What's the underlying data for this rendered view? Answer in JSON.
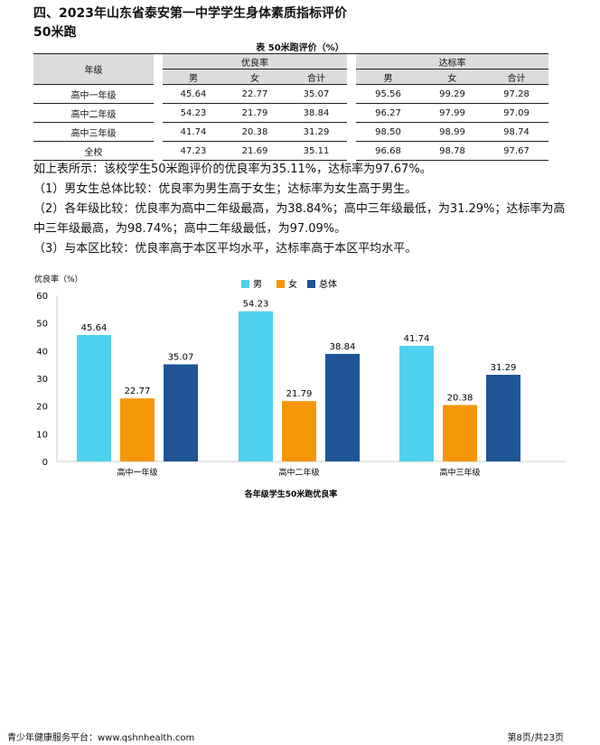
{
  "heading": "四、2023年山东省泰安第一中学学生身体素质指标评价",
  "subheading": "50米跑",
  "table": {
    "caption": "表 50米跑评价（%）",
    "col_grade": "年级",
    "group1": "优良率",
    "group2": "达标率",
    "sub": [
      "男",
      "女",
      "合计"
    ],
    "rows": [
      {
        "grade": "高中一年级",
        "v": [
          "45.64",
          "22.77",
          "35.07",
          "95.56",
          "99.29",
          "97.28"
        ]
      },
      {
        "grade": "高中二年级",
        "v": [
          "54.23",
          "21.79",
          "38.84",
          "96.27",
          "97.99",
          "97.09"
        ]
      },
      {
        "grade": "高中三年级",
        "v": [
          "41.74",
          "20.38",
          "31.29",
          "98.50",
          "98.99",
          "98.74"
        ]
      },
      {
        "grade": "全校",
        "v": [
          "47.23",
          "21.69",
          "35.11",
          "96.68",
          "98.78",
          "97.67"
        ]
      }
    ]
  },
  "paragraphs": [
    "如上表所示：该校学生50米跑评价的优良率为35.11%，达标率为97.67%。",
    "（1）男女生总体比较：优良率为男生高于女生；达标率为女生高于男生。",
    "（2）各年级比较：优良率为高中二年级最高，为38.84%；高中三年级最低，为31.29%；达标率为高中三年级最高，为98.74%；高中二年级最低，为97.09%。",
    "（3）与本区比较：优良率高于本区平均水平，达标率高于本区平均水平。"
  ],
  "chart_data": {
    "type": "bar",
    "title": "各年级学生50米跑优良率",
    "ylabel": "优良率（%）",
    "ylim": [
      0,
      60
    ],
    "yticks": [
      0,
      10,
      20,
      30,
      40,
      50,
      60
    ],
    "categories": [
      "高中一年级",
      "高中二年级",
      "高中三年级"
    ],
    "legend": "top-center",
    "series": [
      {
        "name": "男",
        "color": "#4fd0ec",
        "values": [
          45.64,
          54.23,
          41.74
        ]
      },
      {
        "name": "女",
        "color": "#f5960a",
        "values": [
          22.77,
          21.79,
          20.38
        ]
      },
      {
        "name": "总体",
        "color": "#1f5597",
        "values": [
          35.07,
          38.84,
          31.29
        ]
      }
    ]
  },
  "footer": {
    "left": "青少年健康服务平台：www.qshnhealth.com",
    "right": "第8页/共23页"
  }
}
